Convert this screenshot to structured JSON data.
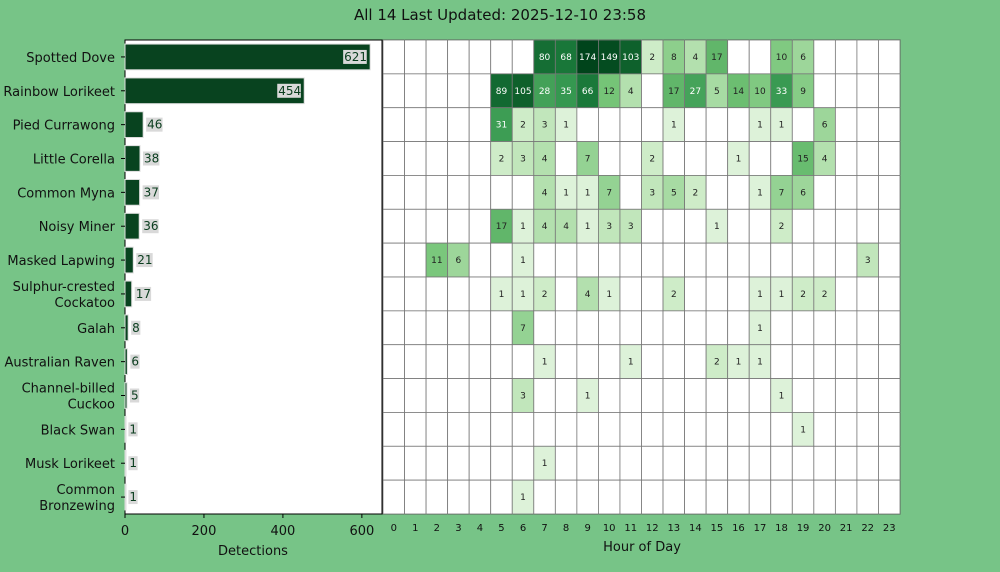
{
  "title": "All 14 Last Updated: 2025-12-10 23:58",
  "chart_data": [
    {
      "type": "bar",
      "orientation": "horizontal",
      "categories": [
        "Spotted Dove",
        "Rainbow Lorikeet",
        "Pied Currawong",
        "Little Corella",
        "Common Myna",
        "Noisy Miner",
        "Masked Lapwing",
        "Sulphur-crested Cockatoo",
        "Galah",
        "Australian Raven",
        "Channel-billed Cuckoo",
        "Black Swan",
        "Musk Lorikeet",
        "Common Bronzewing"
      ],
      "category_lines": [
        [
          "Spotted Dove"
        ],
        [
          "Rainbow Lorikeet"
        ],
        [
          "Pied Currawong"
        ],
        [
          "Little Corella"
        ],
        [
          "Common Myna"
        ],
        [
          "Noisy Miner"
        ],
        [
          "Masked Lapwing"
        ],
        [
          "Sulphur-crested",
          "Cockatoo"
        ],
        [
          "Galah"
        ],
        [
          "Australian Raven"
        ],
        [
          "Channel-billed",
          "Cuckoo"
        ],
        [
          "Black Swan"
        ],
        [
          "Musk Lorikeet"
        ],
        [
          "Common",
          "Bronzewing"
        ]
      ],
      "values": [
        621,
        454,
        46,
        38,
        37,
        36,
        21,
        17,
        8,
        6,
        5,
        1,
        1,
        1
      ],
      "xlabel": "Detections",
      "xticks": [
        0,
        200,
        400,
        600
      ],
      "xlim": [
        0,
        651
      ],
      "bar_color": "#08431f"
    },
    {
      "type": "heatmap",
      "xlabel": "Hour of Day",
      "hours": [
        "0",
        "1",
        "2",
        "3",
        "4",
        "5",
        "6",
        "7",
        "8",
        "9",
        "10",
        "11",
        "12",
        "13",
        "14",
        "15",
        "16",
        "17",
        "18",
        "19",
        "20",
        "21",
        "22",
        "23"
      ],
      "highlight_hour": 23,
      "highlight_color": "#ccff33",
      "rows": [
        [
          null,
          null,
          null,
          null,
          null,
          null,
          null,
          80,
          68,
          174,
          149,
          103,
          2,
          8,
          4,
          17,
          null,
          null,
          10,
          6,
          null,
          null,
          null,
          null
        ],
        [
          null,
          null,
          null,
          null,
          null,
          89,
          105,
          28,
          35,
          66,
          12,
          4,
          null,
          17,
          27,
          5,
          14,
          10,
          33,
          9,
          null,
          null,
          null,
          null
        ],
        [
          null,
          null,
          null,
          null,
          null,
          31,
          2,
          3,
          1,
          null,
          null,
          null,
          null,
          1,
          null,
          null,
          null,
          1,
          1,
          null,
          6,
          null,
          null,
          null
        ],
        [
          null,
          null,
          null,
          null,
          null,
          2,
          3,
          4,
          null,
          7,
          null,
          null,
          2,
          null,
          null,
          null,
          1,
          null,
          null,
          15,
          4,
          null,
          null,
          null
        ],
        [
          null,
          null,
          null,
          null,
          null,
          null,
          null,
          4,
          1,
          1,
          7,
          null,
          3,
          5,
          2,
          null,
          null,
          1,
          7,
          6,
          null,
          null,
          null,
          null
        ],
        [
          null,
          null,
          null,
          null,
          null,
          17,
          1,
          4,
          4,
          1,
          3,
          3,
          null,
          null,
          null,
          1,
          null,
          null,
          2,
          null,
          null,
          null,
          null,
          null
        ],
        [
          null,
          null,
          11,
          6,
          null,
          null,
          1,
          null,
          null,
          null,
          null,
          null,
          null,
          null,
          null,
          null,
          null,
          null,
          null,
          null,
          null,
          null,
          3,
          null
        ],
        [
          null,
          null,
          null,
          null,
          null,
          1,
          1,
          2,
          null,
          4,
          1,
          null,
          null,
          2,
          null,
          null,
          null,
          1,
          1,
          2,
          2,
          null,
          null,
          null
        ],
        [
          null,
          null,
          null,
          null,
          null,
          null,
          7,
          null,
          null,
          null,
          null,
          null,
          null,
          null,
          null,
          null,
          null,
          1,
          null,
          null,
          null,
          null,
          null,
          null
        ],
        [
          null,
          null,
          null,
          null,
          null,
          null,
          null,
          1,
          null,
          null,
          null,
          1,
          null,
          null,
          null,
          2,
          1,
          1,
          null,
          null,
          null,
          null,
          null,
          null
        ],
        [
          null,
          null,
          null,
          null,
          null,
          null,
          3,
          null,
          null,
          1,
          null,
          null,
          null,
          null,
          null,
          null,
          null,
          null,
          1,
          null,
          null,
          null,
          null,
          null
        ],
        [
          null,
          null,
          null,
          null,
          null,
          null,
          null,
          null,
          null,
          null,
          null,
          null,
          null,
          null,
          null,
          null,
          null,
          null,
          null,
          1,
          null,
          null,
          null,
          null
        ],
        [
          null,
          null,
          null,
          null,
          null,
          null,
          null,
          1,
          null,
          null,
          null,
          null,
          null,
          null,
          null,
          null,
          null,
          null,
          null,
          null,
          null,
          null,
          null,
          null
        ],
        [
          null,
          null,
          null,
          null,
          null,
          null,
          1,
          null,
          null,
          null,
          null,
          null,
          null,
          null,
          null,
          null,
          null,
          null,
          null,
          null,
          null,
          null,
          null,
          null
        ]
      ]
    }
  ]
}
